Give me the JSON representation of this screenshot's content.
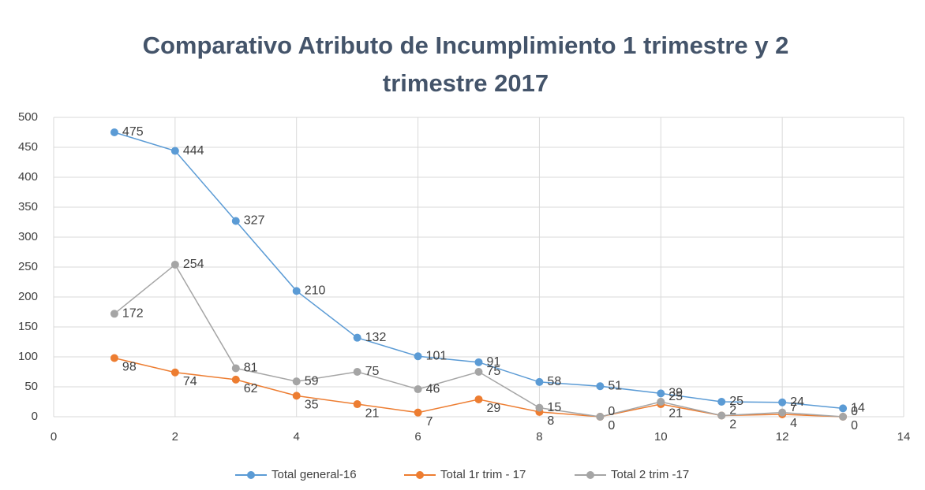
{
  "chart_data": {
    "type": "scatter",
    "title": "Comparativo Atributo de Incumplimiento 1 trimestre y 2 trimestre 2017",
    "x": [
      1,
      2,
      3,
      4,
      5,
      6,
      7,
      8,
      9,
      10,
      11,
      12,
      13
    ],
    "series": [
      {
        "name": "Total general-16",
        "color": "#5b9bd5",
        "values": [
          475,
          444,
          327,
          210,
          132,
          101,
          91,
          58,
          51,
          39,
          25,
          24,
          14
        ]
      },
      {
        "name": "Total 1r trim - 17",
        "color": "#ed7d31",
        "values": [
          98,
          74,
          62,
          35,
          21,
          7,
          29,
          8,
          0,
          21,
          2,
          4,
          0
        ]
      },
      {
        "name": "Total 2 trim -17",
        "color": "#a5a5a5",
        "values": [
          172,
          254,
          81,
          59,
          75,
          46,
          75,
          15,
          0,
          25,
          2,
          7,
          0
        ]
      }
    ],
    "xlim": [
      0,
      14
    ],
    "xticks": [
      0,
      2,
      4,
      6,
      8,
      10,
      12,
      14
    ],
    "ylim": [
      0,
      500
    ],
    "yticks": [
      0,
      50,
      100,
      150,
      200,
      250,
      300,
      350,
      400,
      450,
      500
    ],
    "grid": true,
    "legend": "bottom"
  }
}
